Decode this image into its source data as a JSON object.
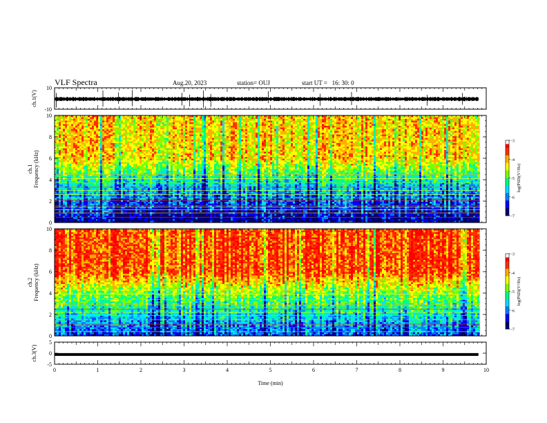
{
  "header": {
    "title": "VLF Spectra",
    "date": "Aug.20, 2023",
    "station": "station= OUJ",
    "start": "start UT =   16: 30: 0"
  },
  "chart_data": [
    {
      "type": "line",
      "name": "ch1-waveform",
      "ylabel": "ch.1(V)",
      "ylim": [
        -10,
        10
      ],
      "yticks": [
        "10",
        "-10"
      ],
      "xlim": [
        0,
        10
      ],
      "x_extent_min": [
        0,
        9.82
      ],
      "baseline_v": -0.5,
      "typical_envelope_v": [
        -2,
        2
      ],
      "spike_times_min": [
        0.04,
        1.12,
        1.48,
        1.8,
        2.95,
        3.13,
        3.45,
        3.62,
        4.95,
        6.15,
        6.88,
        8.63,
        9.45
      ]
    },
    {
      "type": "heatmap",
      "name": "ch1-spectrogram",
      "ylabel": "ch.1\nFrequency (kHz)",
      "xlim": [
        0,
        10
      ],
      "ylim": [
        0,
        10
      ],
      "yticks": [
        "0",
        "2",
        "4",
        "6",
        "8",
        "10"
      ],
      "colorbar": {
        "label": "log(PSD)(V²/Hz)",
        "range": [
          -7,
          -3
        ],
        "ticks": [
          "-3",
          "-4",
          "-5",
          "-6",
          "-7"
        ]
      },
      "upper_band_level": -4.2,
      "horizontal_lines_khz": [
        0.5,
        0.9,
        1.2,
        1.45,
        1.6,
        2.1,
        2.3,
        2.6,
        3.0,
        3.3,
        3.7,
        4.1,
        4.5
      ],
      "colors": [
        "#000070",
        "#0000ff",
        "#0080ff",
        "#00e0ff",
        "#00ff80",
        "#80ff00",
        "#ffff00",
        "#ffb000",
        "#ff3000",
        "#ff0000",
        "#ffffff"
      ]
    },
    {
      "type": "heatmap",
      "name": "ch2-spectrogram",
      "ylabel": "ch.2\nFrequency (kHz)",
      "xlim": [
        0,
        10
      ],
      "ylim": [
        0,
        10
      ],
      "yticks": [
        "0",
        "2",
        "4",
        "6",
        "8",
        "10"
      ],
      "colorbar": {
        "label": "log(PSD)(V²/Hz)",
        "range": [
          -7,
          -3
        ],
        "ticks": [
          "-3",
          "-4",
          "-5",
          "-6",
          "-7"
        ]
      },
      "upper_band_level": -3.6,
      "horizontal_lines_khz": [
        0.4,
        0.8,
        1.1,
        1.5,
        1.9,
        2.2,
        2.5,
        2.9,
        3.4,
        3.9,
        4.3
      ],
      "colors": [
        "#000070",
        "#0000ff",
        "#0080ff",
        "#00e0ff",
        "#00ff80",
        "#80ff00",
        "#ffff00",
        "#ffb000",
        "#ff3000",
        "#ff0000",
        "#ffffff"
      ]
    },
    {
      "type": "line",
      "name": "ch3-waveform",
      "ylabel": "ch.3(V)",
      "ylim": [
        -5,
        5
      ],
      "yticks": [
        "5",
        "0",
        "-5"
      ],
      "xlim": [
        0,
        10
      ],
      "x_extent_min": [
        0,
        9.82
      ],
      "value_v": -0.6,
      "xlabel": "Time  (min)",
      "xticks": [
        "0",
        "1",
        "2",
        "3",
        "4",
        "5",
        "6",
        "7",
        "8",
        "9",
        "10"
      ]
    }
  ]
}
